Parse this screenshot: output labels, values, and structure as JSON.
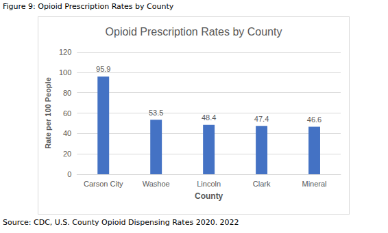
{
  "caption": "Figure 9: Opioid Prescription Rates by County",
  "source": "Source: CDC, U.S. County Opioid Dispensing Rates 2020. 2022",
  "chart_data": {
    "type": "bar",
    "title": "Opioid Prescription Rates by County",
    "x_label": "County",
    "y_label": "Rate per 100 People",
    "categories": [
      "Carson City",
      "Washoe",
      "Lincoln",
      "Clark",
      "Mineral"
    ],
    "values": [
      95.9,
      53.5,
      48.4,
      47.4,
      46.6
    ],
    "color": "#4472c4",
    "ylim": [
      0,
      120
    ],
    "yticks": [
      0,
      20,
      40,
      60,
      80,
      100,
      120
    ],
    "grid": true,
    "data_labels": true
  }
}
